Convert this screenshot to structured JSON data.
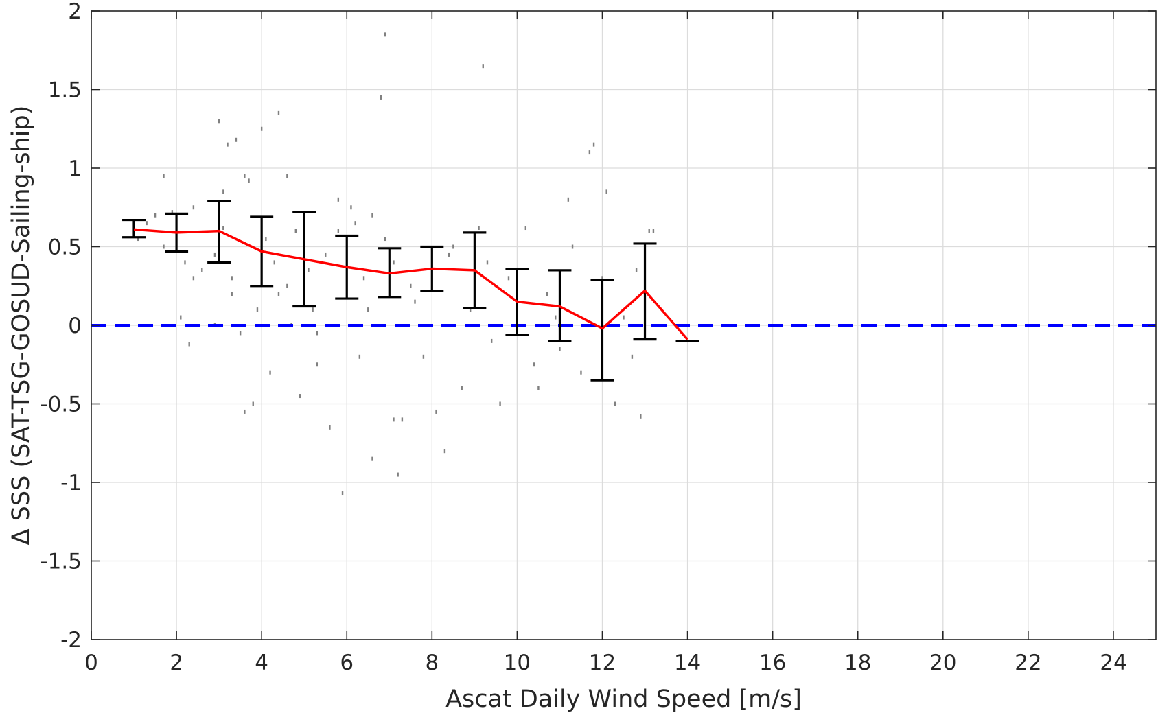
{
  "chart_data": {
    "type": "scatter",
    "title": "",
    "xlabel": "Ascat Daily Wind Speed [m/s]",
    "ylabel": "Δ SSS (SAT-TSG-GOSUD-Sailing-ship)",
    "xlim": [
      0,
      25
    ],
    "ylim": [
      -2,
      2
    ],
    "xticks": [
      0,
      2,
      4,
      6,
      8,
      10,
      12,
      14,
      16,
      18,
      20,
      22,
      24
    ],
    "yticks": [
      -2,
      -1.5,
      -1,
      -0.5,
      0,
      0.5,
      1,
      1.5,
      2
    ],
    "xtick_labels": [
      "0",
      "2",
      "4",
      "6",
      "8",
      "10",
      "12",
      "14",
      "16",
      "18",
      "20",
      "22",
      "24"
    ],
    "ytick_labels": [
      "-2",
      "-1.5",
      "-1",
      "-0.5",
      "0",
      "0.5",
      "1",
      "1.5",
      "2"
    ],
    "grid": true,
    "colors": {
      "scatter": "#808080",
      "mean_line": "#ff0000",
      "error_bars": "#000000",
      "zero_line": "#0000ff",
      "grid": "#dcdcdc",
      "axes": "#262626"
    },
    "mean_line": {
      "x": [
        1,
        2,
        3,
        4,
        5,
        6,
        7,
        8,
        9,
        10,
        11,
        12,
        13,
        14
      ],
      "y": [
        0.61,
        0.59,
        0.6,
        0.47,
        0.42,
        0.37,
        0.33,
        0.36,
        0.35,
        0.15,
        0.12,
        -0.02,
        0.22,
        -0.09
      ]
    },
    "error_bars": [
      {
        "x": 1,
        "low": 0.56,
        "high": 0.67
      },
      {
        "x": 2,
        "low": 0.47,
        "high": 0.71
      },
      {
        "x": 3,
        "low": 0.4,
        "high": 0.79
      },
      {
        "x": 4,
        "low": 0.25,
        "high": 0.69
      },
      {
        "x": 5,
        "low": 0.12,
        "high": 0.72
      },
      {
        "x": 6,
        "low": 0.17,
        "high": 0.57
      },
      {
        "x": 7,
        "low": 0.18,
        "high": 0.49
      },
      {
        "x": 8,
        "low": 0.22,
        "high": 0.5
      },
      {
        "x": 9,
        "low": 0.11,
        "high": 0.59
      },
      {
        "x": 10,
        "low": -0.06,
        "high": 0.36
      },
      {
        "x": 11,
        "low": -0.1,
        "high": 0.35
      },
      {
        "x": 12,
        "low": -0.35,
        "high": 0.29
      },
      {
        "x": 13,
        "low": -0.09,
        "high": 0.52
      },
      {
        "x": 14,
        "low": -0.1,
        "high": -0.1
      }
    ],
    "zero_line": {
      "y": 0,
      "style": "dashed"
    },
    "scatter": {
      "x": [
        1.0,
        1.1,
        1.3,
        1.5,
        1.7,
        1.9,
        2.2,
        2.4,
        1.7,
        2.1,
        2.3,
        2.6,
        2.9,
        3.1,
        3.3,
        3.5,
        3.2,
        3.4,
        3.7,
        3.8,
        3.6,
        3.3,
        3.0,
        3.9,
        4.2,
        4.4,
        4.7,
        4.9,
        4.1,
        4.3,
        4.6,
        4.8,
        5.1,
        5.3,
        5.6,
        5.2,
        5.5,
        5.8,
        5.9,
        6.1,
        6.2,
        6.4,
        6.6,
        6.3,
        6.5,
        6.8,
        6.9,
        6.9,
        7.1,
        7.3,
        7.6,
        7.8,
        7.2,
        7.5,
        8.1,
        8.4,
        8.7,
        8.3,
        8.9,
        9.1,
        9.4,
        9.6,
        9.2,
        9.8,
        10.2,
        10.4,
        10.7,
        10.5,
        10.9,
        11.2,
        11.5,
        11.7,
        11.3,
        11.8,
        12.1,
        12.3,
        12.5,
        12.0,
        12.7,
        12.9,
        13.1,
        12.8,
        5.8,
        6.0,
        7.1,
        8.5,
        4.6,
        4.0,
        3.6,
        2.9,
        4.4,
        5.3,
        6.6,
        3.1,
        2.4,
        9.3,
        10.0,
        11.0,
        13.2
      ],
      "y": [
        0.6,
        0.55,
        0.65,
        0.7,
        0.95,
        0.72,
        0.4,
        0.3,
        0.5,
        0.05,
        -0.12,
        0.35,
        0.45,
        0.62,
        0.2,
        -0.05,
        1.15,
        1.18,
        0.92,
        -0.5,
        -0.55,
        0.3,
        1.3,
        0.1,
        -0.3,
        0.2,
        0.0,
        -0.45,
        0.55,
        0.4,
        0.25,
        0.6,
        0.35,
        -0.25,
        -0.65,
        0.1,
        0.45,
        0.6,
        -1.07,
        0.75,
        0.65,
        0.3,
        -0.85,
        -0.2,
        0.1,
        1.45,
        1.85,
        0.55,
        0.4,
        -0.6,
        0.15,
        -0.2,
        -0.95,
        0.25,
        -0.55,
        0.45,
        -0.4,
        -0.8,
        0.1,
        0.62,
        -0.1,
        -0.5,
        1.65,
        0.3,
        0.62,
        -0.25,
        0.2,
        -0.4,
        0.05,
        0.8,
        -0.3,
        1.1,
        0.5,
        1.15,
        0.85,
        -0.5,
        0.05,
        0.3,
        -0.2,
        -0.58,
        0.6,
        0.35,
        0.8,
        0.55,
        -0.6,
        0.5,
        0.95,
        1.25,
        0.95,
        0.0,
        1.35,
        -0.05,
        0.7,
        0.85,
        0.75,
        0.4,
        0.25,
        -0.15,
        0.6
      ]
    }
  }
}
